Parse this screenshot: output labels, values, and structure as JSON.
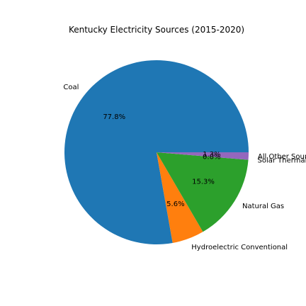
{
  "chart_data": {
    "type": "pie",
    "title": "Kentucky Electricity Sources (2015-2020)",
    "categories": [
      "Coal",
      "Hydroelectric Conventional",
      "Natural Gas",
      "Solar Thermal",
      "All Other Sources"
    ],
    "values": [
      77.8,
      5.6,
      15.3,
      0.0,
      1.3
    ],
    "value_labels": [
      "77.8%",
      "5.6%",
      "15.3%",
      "0.0%",
      "1.3%"
    ],
    "colors": [
      "#1f77b4",
      "#ff7f0e",
      "#2ca02c",
      "#d62728",
      "#9467bd"
    ],
    "start_angle_deg": 0,
    "direction": "counterclockwise"
  }
}
